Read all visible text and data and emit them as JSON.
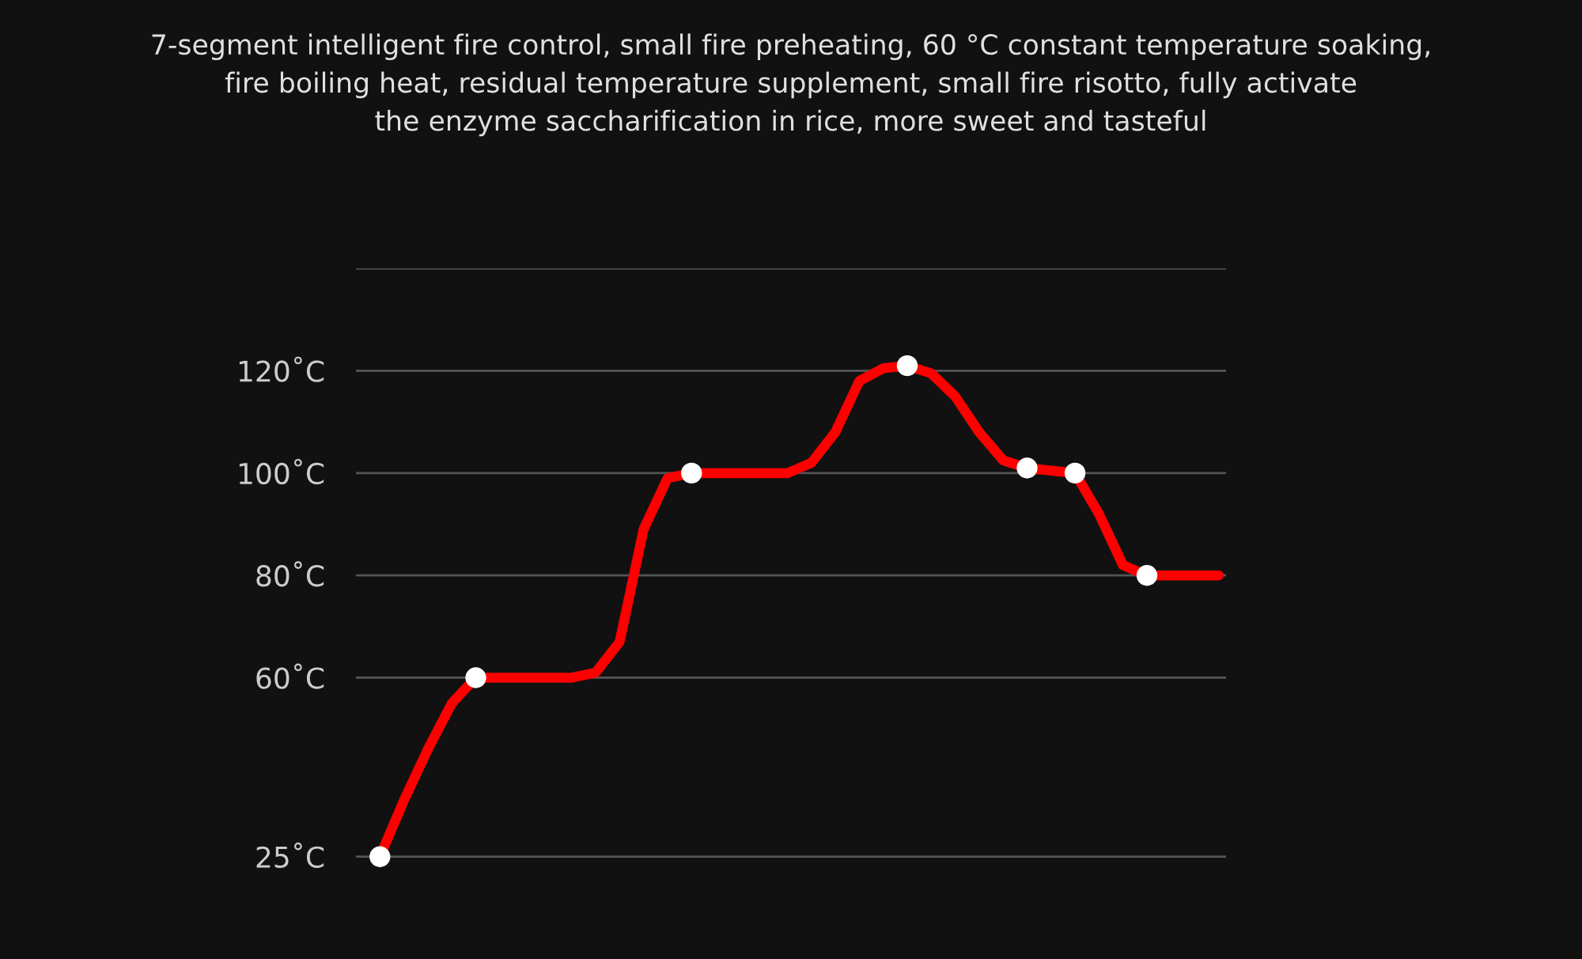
{
  "chart_data": {
    "type": "line",
    "title": "7-segment intelligent fire control, small fire preheating, 60 °C constant temperature soaking,\nfire boiling heat, residual temperature supplement, small fire risotto, fully activate\nthe enzyme saccharification in rice, more sweet and tasteful",
    "categories": [
      null,
      null,
      null,
      null,
      null,
      null,
      null,
      null,
      null,
      null,
      null,
      null,
      null,
      null,
      null,
      null,
      null,
      null,
      null,
      null,
      null,
      null,
      null,
      null,
      null,
      null,
      null,
      null,
      null,
      null,
      null,
      null,
      null,
      null,
      null,
      null
    ],
    "series": [
      {
        "color": "#ff0000",
        "marker": "none",
        "values": [
          25,
          36,
          46,
          55,
          60,
          60,
          60,
          60,
          60,
          61,
          67,
          89,
          99,
          100,
          100,
          100,
          100,
          100,
          102,
          108,
          118,
          120.5,
          121,
          119.5,
          115,
          108,
          102.5,
          101,
          100.5,
          100,
          92,
          82,
          80,
          80,
          80,
          80
        ]
      },
      {
        "type": "scatter",
        "color": "#ffffff",
        "marker": "circle",
        "values": [
          25,
          null,
          null,
          null,
          60,
          null,
          null,
          null,
          null,
          null,
          null,
          null,
          null,
          100,
          null,
          null,
          null,
          null,
          null,
          null,
          null,
          null,
          121,
          null,
          null,
          null,
          null,
          101,
          null,
          100,
          null,
          null,
          80,
          null,
          null,
          null
        ]
      }
    ],
    "ylim": [
      5,
      140
    ],
    "yticks": [
      {
        "value": 25,
        "label": "25˚C"
      },
      {
        "value": 60,
        "label": "60˚C"
      },
      {
        "value": 80,
        "label": "80˚C"
      },
      {
        "value": 100,
        "label": "100˚C"
      },
      {
        "value": 120,
        "label": "120˚C"
      },
      {
        "value": 140,
        "label": null
      }
    ],
    "grid": "y",
    "tick_labels": "y"
  }
}
